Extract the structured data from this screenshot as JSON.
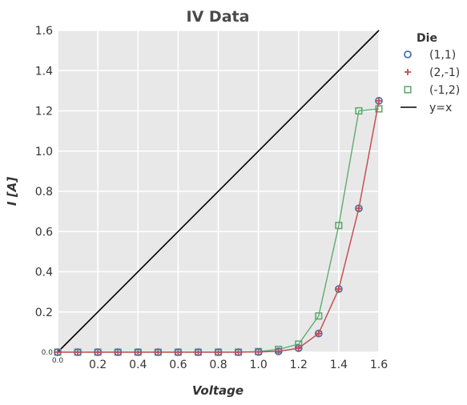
{
  "chart_data": {
    "type": "line",
    "title": "IV Data",
    "xlabel": "Voltage",
    "ylabel": "I [A]",
    "xlim": [
      0.0,
      1.6
    ],
    "ylim": [
      0.0,
      1.6
    ],
    "grid": true,
    "xticks": [
      "0.0",
      "0.2",
      "0.4",
      "0.6",
      "0.8",
      "1.0",
      "1.2",
      "1.4",
      "1.6"
    ],
    "yticks": [
      "0.0",
      "0.2",
      "0.4",
      "0.6",
      "0.8",
      "1.0",
      "1.2",
      "1.4",
      "1.6"
    ],
    "legend": {
      "title": "Die",
      "placement": "outside-top-right"
    },
    "x": [
      0.0,
      0.1,
      0.2,
      0.3,
      0.4,
      0.5,
      0.6,
      0.7,
      0.8,
      0.9,
      1.0,
      1.1,
      1.2,
      1.3,
      1.4,
      1.5,
      1.6
    ],
    "series": [
      {
        "name": "(1,1)",
        "marker": "circle",
        "color": "#4c72b0",
        "line_color": "#c44e52",
        "values": [
          0,
          0,
          0,
          0,
          0,
          0,
          0,
          0,
          0,
          0,
          0.001,
          0.004,
          0.02,
          0.093,
          0.314,
          0.715,
          1.25
        ]
      },
      {
        "name": "(2,-1)",
        "marker": "plus",
        "color": "#c44e52",
        "line_color": "#c44e52",
        "values": [
          0,
          0,
          0,
          0,
          0,
          0,
          0,
          0,
          0,
          0,
          0.001,
          0.004,
          0.02,
          0.093,
          0.314,
          0.715,
          1.25
        ]
      },
      {
        "name": "(-1,2)",
        "marker": "square",
        "color": "#55a868",
        "line_color": "#55a868",
        "values": [
          0,
          0,
          0,
          0,
          0,
          0,
          0,
          0,
          0,
          0,
          0.003,
          0.014,
          0.04,
          0.18,
          0.63,
          1.2,
          1.21
        ]
      },
      {
        "name": "y=x",
        "marker": "none",
        "color": "#000000",
        "line_color": "#000000",
        "x": [
          0.0,
          1.6
        ],
        "values": [
          0.0,
          1.6
        ]
      }
    ],
    "colors": {
      "plot_background": "#e8e8e8",
      "grid": "#ffffff"
    }
  }
}
